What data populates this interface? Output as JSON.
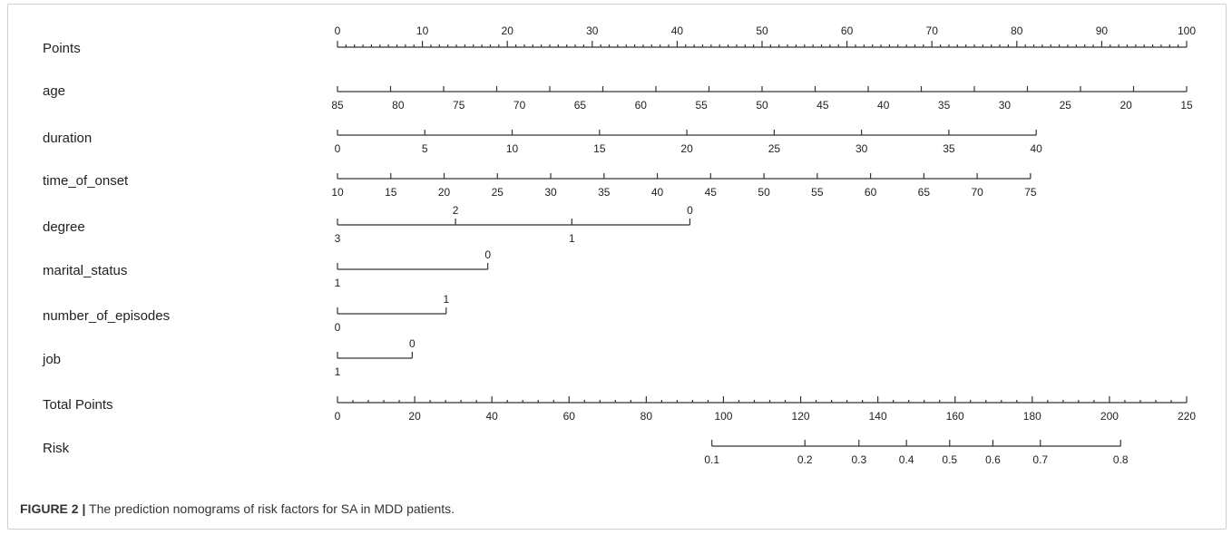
{
  "chart_data": {
    "type": "nomogram",
    "rows": [
      {
        "label": "Points",
        "scale": "points",
        "min": 0,
        "max": 100,
        "major": [
          0,
          10,
          20,
          30,
          40,
          50,
          60,
          70,
          80,
          90,
          100
        ],
        "minor_step": 1,
        "labels": [
          "0",
          "10",
          "20",
          "30",
          "40",
          "50",
          "60",
          "70",
          "80",
          "90",
          "100"
        ],
        "label_side": "above"
      },
      {
        "label": "age",
        "scale": "points",
        "ticks": [
          0,
          6.25,
          12.5,
          18.75,
          25,
          31.25,
          37.5,
          43.75,
          50,
          56.25,
          62.5,
          68.75,
          75,
          81.25,
          87.5,
          93.75,
          100
        ],
        "labels": [
          "85",
          "80",
          "75",
          "70",
          "65",
          "60",
          "55",
          "50",
          "45",
          "40",
          "35",
          "30",
          "25",
          "20",
          "15"
        ],
        "label_points": [
          0,
          7.1428,
          14.2857,
          21.4286,
          28.5714,
          35.7143,
          42.8571,
          50,
          57.1429,
          64.2857,
          71.4286,
          78.5714,
          85.7143,
          92.8571,
          100
        ],
        "label_side": "below"
      },
      {
        "label": "duration",
        "scale": "points",
        "label_points": [
          0,
          10.2857,
          20.5714,
          30.8571,
          41.1429,
          51.4286,
          61.7143,
          72,
          82.2857
        ],
        "labels": [
          "0",
          "5",
          "10",
          "15",
          "20",
          "25",
          "30",
          "35",
          "40"
        ],
        "label_side": "below"
      },
      {
        "label": "time_of_onset",
        "scale": "points",
        "label_points": [
          0,
          6.2778,
          12.5556,
          18.8333,
          25.1111,
          31.3889,
          37.6667,
          43.9444,
          50.2222,
          56.5,
          62.7778,
          69.0556,
          75.3333,
          81.6111
        ],
        "labels": [
          "10",
          "15",
          "20",
          "25",
          "30",
          "35",
          "40",
          "45",
          "50",
          "55",
          "60",
          "65",
          "70",
          "75"
        ],
        "label_side": "below"
      },
      {
        "label": "degree",
        "scale": "points",
        "points": [
          {
            "value": "3",
            "at": 0,
            "side": "below"
          },
          {
            "value": "2",
            "at": 13.9,
            "side": "above"
          },
          {
            "value": "1",
            "at": 27.6,
            "side": "below"
          },
          {
            "value": "0",
            "at": 41.5,
            "side": "above"
          }
        ]
      },
      {
        "label": "marital_status",
        "scale": "points",
        "points": [
          {
            "value": "1",
            "at": 0,
            "side": "below"
          },
          {
            "value": "0",
            "at": 17.7,
            "side": "above"
          }
        ]
      },
      {
        "label": "number_of_episodes",
        "scale": "points",
        "points": [
          {
            "value": "0",
            "at": 0,
            "side": "below"
          },
          {
            "value": "1",
            "at": 12.8,
            "side": "above"
          }
        ]
      },
      {
        "label": "job",
        "scale": "points",
        "points": [
          {
            "value": "1",
            "at": 0,
            "side": "below"
          },
          {
            "value": "0",
            "at": 8.8,
            "side": "above"
          }
        ]
      },
      {
        "label": "Total Points",
        "scale": "total",
        "min": 0,
        "max": 220,
        "major": [
          0,
          20,
          40,
          60,
          80,
          100,
          120,
          140,
          160,
          180,
          200,
          220
        ],
        "minor_step": 4,
        "labels": [
          "0",
          "20",
          "40",
          "60",
          "80",
          "100",
          "120",
          "140",
          "160",
          "180",
          "200",
          "220"
        ],
        "label_side": "below"
      },
      {
        "label": "Risk",
        "scale": "total",
        "points": [
          {
            "value": "0.1",
            "at": 97
          },
          {
            "value": "0.2",
            "at": 121.1
          },
          {
            "value": "0.3",
            "at": 135.1
          },
          {
            "value": "0.4",
            "at": 147.4
          },
          {
            "value": "0.5",
            "at": 158.6
          },
          {
            "value": "0.6",
            "at": 169.8
          },
          {
            "value": "0.7",
            "at": 182.1
          },
          {
            "value": "0.8",
            "at": 202.9
          }
        ],
        "label_side": "below"
      }
    ]
  },
  "caption": {
    "figure_label": "FIGURE 2 |",
    "text": " The prediction nomograms of risk factors for SA in MDD patients."
  }
}
